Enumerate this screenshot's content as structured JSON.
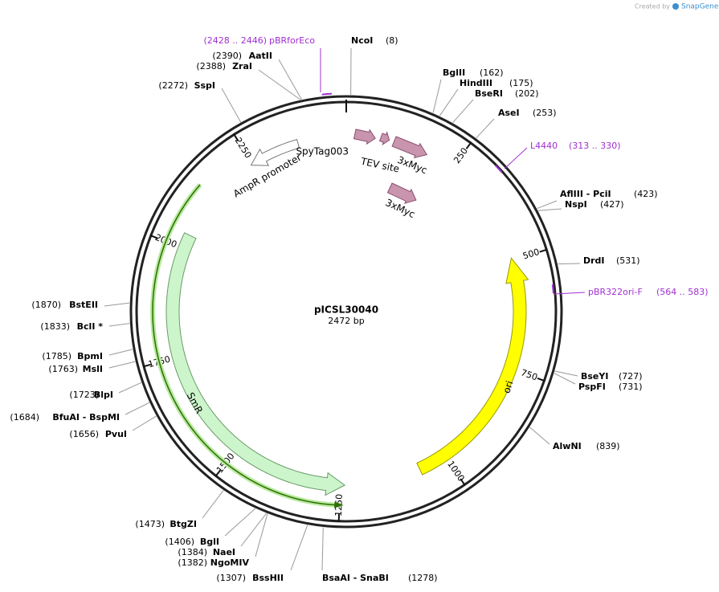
{
  "header": {
    "created_by": "Created by",
    "brand": "SnapGene"
  },
  "plasmid": {
    "name": "pICSL30040",
    "size": "2472 bp"
  },
  "ticks": [
    250,
    500,
    750,
    1000,
    1250,
    1500,
    1750,
    2000,
    2250
  ],
  "sites": [
    {
      "name": "NcoI",
      "position": "(8)"
    },
    {
      "name": "BglII",
      "position": "(162)"
    },
    {
      "name": "HindIII",
      "position": "(175)"
    },
    {
      "name": "BseRI",
      "position": "(202)"
    },
    {
      "name": "AseI",
      "position": "(253)"
    },
    {
      "name": "AflIII - PciI",
      "position": "(423)"
    },
    {
      "name": "NspI",
      "position": "(427)"
    },
    {
      "name": "DrdI",
      "position": "(531)"
    },
    {
      "name": "BseYI",
      "position": "(727)"
    },
    {
      "name": "PspFI",
      "position": "(731)"
    },
    {
      "name": "AlwNI",
      "position": "(839)"
    },
    {
      "name": "BsaAI - SnaBI",
      "position": "(1278)"
    },
    {
      "name": "BssHII",
      "position": "(1307)"
    },
    {
      "name": "NgoMIV",
      "position": "(1382)"
    },
    {
      "name": "NaeI",
      "position": "(1384)"
    },
    {
      "name": "BglI",
      "position": "(1406)"
    },
    {
      "name": "BtgZI",
      "position": "(1473)"
    },
    {
      "name": "PvuI",
      "position": "(1656)"
    },
    {
      "name": "BfuAI - BspMI",
      "position": "(1684)"
    },
    {
      "name": "BlpI",
      "position": "(1723)"
    },
    {
      "name": "MslI",
      "position": "(1763)"
    },
    {
      "name": "BpmI",
      "position": "(1785)"
    },
    {
      "name": "BclI *",
      "position": "(1833)"
    },
    {
      "name": "BstEII",
      "position": "(1870)"
    },
    {
      "name": "SspI",
      "position": "(2272)"
    },
    {
      "name": "ZraI",
      "position": "(2388)"
    },
    {
      "name": "AatII",
      "position": "(2390)"
    }
  ],
  "primers": [
    {
      "name": "pBRforEco",
      "range": "(2428 .. 2446)"
    },
    {
      "name": "L4440",
      "range": "(313 .. 330)"
    },
    {
      "name": "pBR322ori-F",
      "range": "(564 .. 583)"
    }
  ],
  "features": [
    {
      "name": "SpyTag003"
    },
    {
      "name": "TEV site"
    },
    {
      "name": "3xMyc"
    },
    {
      "name": "3xMyc"
    },
    {
      "name": "AmpR promoter"
    },
    {
      "name": "SmR"
    },
    {
      "name": "ori"
    }
  ]
}
